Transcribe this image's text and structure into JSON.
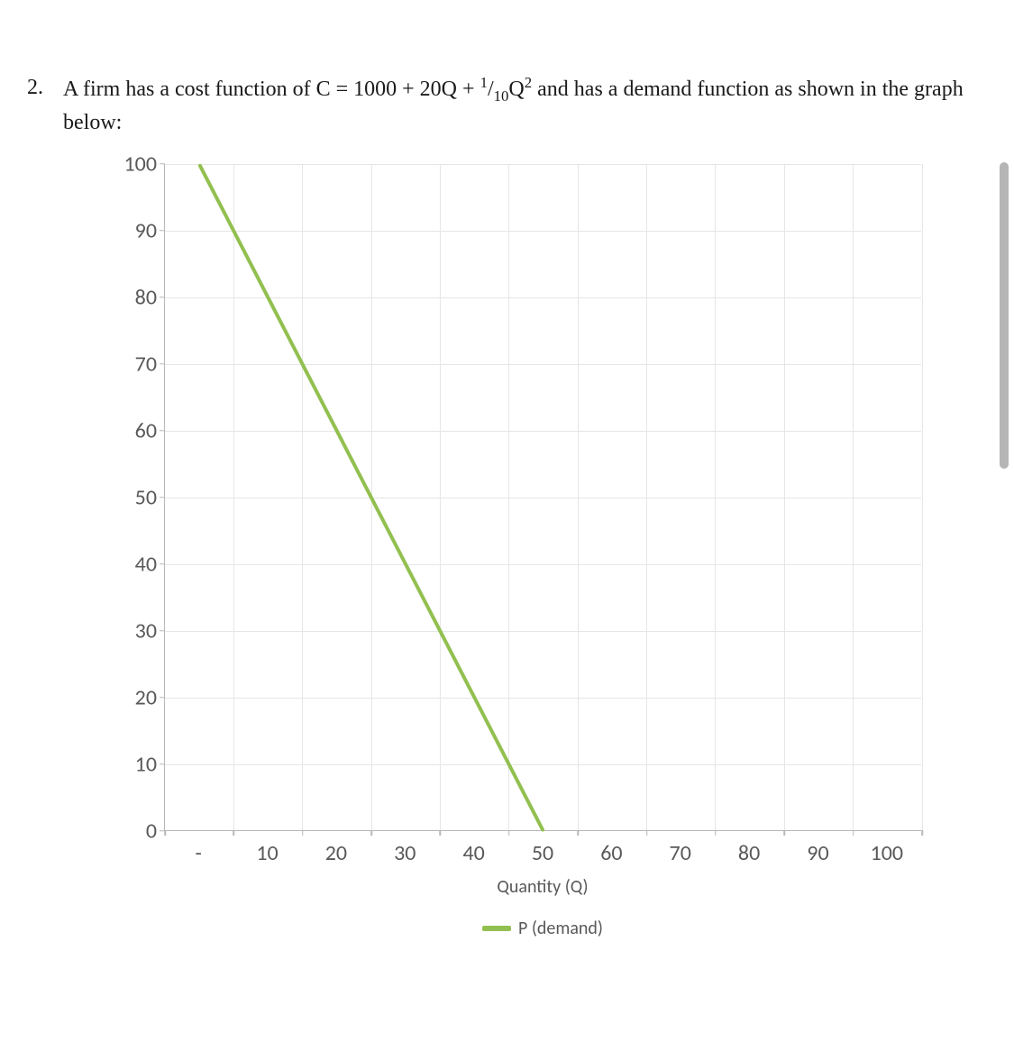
{
  "question": {
    "number": "2.",
    "text_prefix": "A firm has a cost function of C = 1000 + 20Q + ",
    "frac_num": "1",
    "frac_den": "10",
    "text_mid": "Q",
    "exponent": "2",
    "text_suffix": " and has a demand function as shown in the graph below:"
  },
  "chart": {
    "type": "line",
    "background_color": "#ffffff",
    "grid_color": "#e6e6e6",
    "axis_color": "#b7b7b7",
    "axis_label_color": "#595959",
    "axis_fontsize": 24,
    "axis_fontfamily": "Calibri",
    "xlim": [
      0,
      100
    ],
    "ylim": [
      0,
      100
    ],
    "x_categorical_ticks": [
      "-",
      "10",
      "20",
      "30",
      "40",
      "50",
      "60",
      "70",
      "80",
      "90",
      "100"
    ],
    "y_ticks": [
      0,
      10,
      20,
      30,
      40,
      50,
      60,
      70,
      80,
      90,
      100
    ],
    "x_axis_title": "Quantity (Q)",
    "x_axis_title_fontsize": 20,
    "series": {
      "name": "P (demand)",
      "color": "#92c050",
      "line_width": 4,
      "x_indices": [
        0,
        1,
        2,
        3,
        4,
        5
      ],
      "y_values": [
        100,
        80,
        60,
        40,
        20,
        0
      ]
    },
    "legend": {
      "position": "bottom",
      "label": "P (demand)",
      "swatch_color": "#92c050",
      "fontsize": 20
    }
  },
  "scrollbar": {
    "thumb_color": "#b5b5b5"
  }
}
